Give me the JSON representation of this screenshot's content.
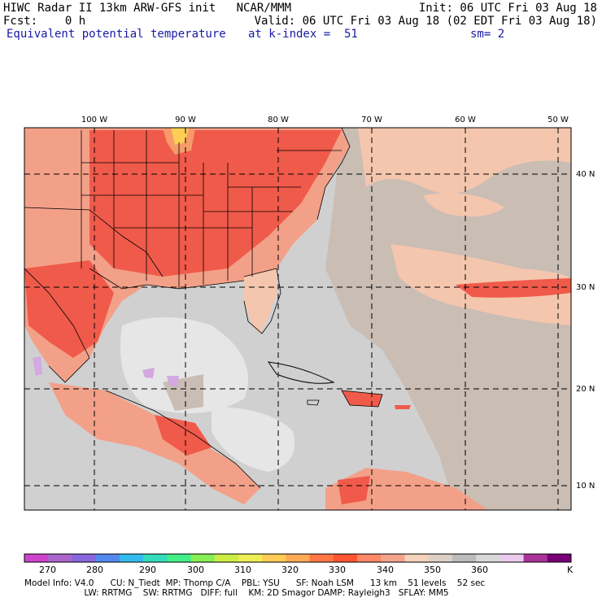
{
  "header": {
    "line1_left": "HIWC Radar II 13km ARW-GFS init   NCAR/MMM",
    "line1_right": "Init: 06 UTC Fri 03 Aug 18",
    "line2_left": "Fcst:    0 h",
    "line2_right": "Valid: 06 UTC Fri 03 Aug 18 (02 EDT Fri 03 Aug 18)",
    "line3_field": "Equivalent potential temperature",
    "line3_level": "at k-index =  51",
    "line3_smooth": "sm= 2"
  },
  "map": {
    "lon_labels": [
      "100 W",
      "90 W",
      "80 W",
      "70 W",
      "60 W",
      "50 W"
    ],
    "lat_labels": [
      "40 N",
      "30 N",
      "20 N",
      "10 N"
    ],
    "colors": {
      "ocean_gray": "#d0d0d0",
      "ocean_light": "#e6e6e6",
      "tan": "#c9bdb4",
      "peach": "#f4c6ad",
      "salmon": "#f3a088",
      "red": "#f05a4a",
      "orange": "#f79a6a",
      "lavender": "#d4a8e0"
    }
  },
  "colorbar": {
    "colors": [
      "#cc44cc",
      "#aa66cc",
      "#8866dd",
      "#5588ee",
      "#33bbee",
      "#33ddbb",
      "#44ee88",
      "#88ee55",
      "#ccee44",
      "#eeee55",
      "#ffcc55",
      "#ffaa55",
      "#ff7744",
      "#ff5533",
      "#ff8866",
      "#f4a48a",
      "#f5d2bb",
      "#ddd0c6",
      "#bcbcbc",
      "#d8d8d8",
      "#eccaec",
      "#aa3399",
      "#770077"
    ],
    "labels": [
      "270",
      "280",
      "290",
      "300",
      "310",
      "320",
      "330",
      "340",
      "350",
      "360",
      "K"
    ]
  },
  "footer": {
    "line1": "Model Info: V4.0      CU: N_Tiedt  MP: Thomp C/A    PBL: YSU      SF: Noah LSM      13 km    51 levels    52 sec",
    "line2": "                      LW: RRTMG    SW: RRTMG   DIFF: full    KM: 2D Smagor DAMP: Rayleigh3   SFLAY: MM5"
  }
}
